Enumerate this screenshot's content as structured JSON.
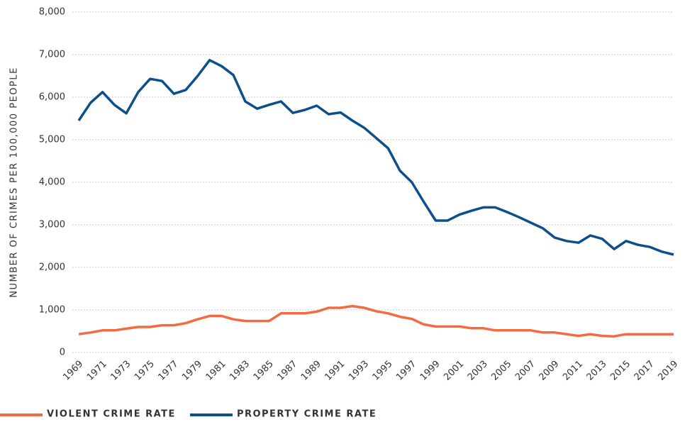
{
  "chart_data": {
    "type": "line",
    "y_label": "NUMBER OF CRIMES PER 100,000 PEOPLE",
    "x": [
      1969,
      1970,
      1971,
      1972,
      1973,
      1974,
      1975,
      1976,
      1977,
      1978,
      1979,
      1980,
      1981,
      1982,
      1983,
      1984,
      1985,
      1986,
      1987,
      1988,
      1989,
      1990,
      1991,
      1992,
      1993,
      1994,
      1995,
      1996,
      1997,
      1998,
      1999,
      2000,
      2001,
      2002,
      2003,
      2004,
      2005,
      2006,
      2007,
      2008,
      2009,
      2010,
      2011,
      2012,
      2013,
      2014,
      2015,
      2016,
      2017,
      2018,
      2019
    ],
    "xlim": [
      1969,
      2019
    ],
    "xticks": [
      1969,
      1971,
      1973,
      1975,
      1977,
      1979,
      1981,
      1983,
      1985,
      1987,
      1989,
      1991,
      1993,
      1995,
      1997,
      1999,
      2001,
      2003,
      2005,
      2007,
      2009,
      2011,
      2013,
      2015,
      2017,
      2019
    ],
    "ylim": [
      0,
      8000
    ],
    "yticks": [
      0,
      {
        "value": 1000,
        "label": "1,000"
      },
      {
        "value": 2000,
        "label": "2,000"
      },
      {
        "value": 3000,
        "label": "3,000"
      },
      {
        "value": 4000,
        "label": "4,000"
      },
      {
        "value": 5000,
        "label": "5,000"
      },
      {
        "value": 6000,
        "label": "6,000"
      },
      {
        "value": 7000,
        "label": "7,000"
      },
      {
        "value": 8000,
        "label": "8,000"
      }
    ],
    "grid": true,
    "legend": "bottom-left",
    "series": [
      {
        "name": "VIOLENT CRIME RATE",
        "color": "#f26b43",
        "values": [
          430,
          470,
          520,
          520,
          560,
          600,
          600,
          640,
          640,
          690,
          780,
          860,
          860,
          780,
          740,
          740,
          740,
          920,
          920,
          920,
          960,
          1050,
          1050,
          1090,
          1050,
          970,
          920,
          840,
          790,
          660,
          610,
          610,
          610,
          570,
          570,
          520,
          520,
          520,
          520,
          470,
          470,
          430,
          390,
          430,
          390,
          380,
          430,
          430,
          430,
          430,
          430
        ]
      },
      {
        "name": "PROPERTY CRIME RATE",
        "color": "#0d4f8b",
        "values": [
          5450,
          5870,
          6120,
          5820,
          5620,
          6120,
          6430,
          6380,
          6080,
          6170,
          6500,
          6870,
          6730,
          6520,
          5900,
          5730,
          5820,
          5900,
          5630,
          5700,
          5800,
          5600,
          5640,
          5450,
          5280,
          5040,
          4800,
          4270,
          4000,
          3540,
          3100,
          3100,
          3240,
          3330,
          3410,
          3410,
          3300,
          3180,
          3050,
          2920,
          2700,
          2620,
          2580,
          2750,
          2670,
          2430,
          2620,
          2530,
          2480,
          2370,
          2300
        ]
      }
    ]
  }
}
